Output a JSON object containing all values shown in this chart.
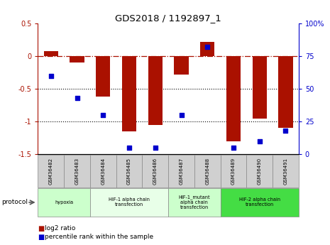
{
  "title": "GDS2018 / 1192897_1",
  "samples": [
    "GSM36482",
    "GSM36483",
    "GSM36484",
    "GSM36485",
    "GSM36486",
    "GSM36487",
    "GSM36488",
    "GSM36489",
    "GSM36490",
    "GSM36491"
  ],
  "log2_ratio": [
    0.08,
    -0.1,
    -0.62,
    -1.15,
    -1.05,
    -0.28,
    0.22,
    -1.3,
    -0.95,
    -1.1
  ],
  "percentile_rank": [
    60,
    43,
    30,
    5,
    5,
    30,
    82,
    5,
    10,
    18
  ],
  "ylim_left": [
    -1.5,
    0.5
  ],
  "ylim_right": [
    0,
    100
  ],
  "bar_color": "#aa1100",
  "sq_color": "#0000cc",
  "groups": [
    {
      "label": "hypoxia",
      "start": 0,
      "end": 1,
      "color": "#ccffcc"
    },
    {
      "label": "HIF-1 alpha chain\ntransfection",
      "start": 2,
      "end": 4,
      "color": "#e8ffe8"
    },
    {
      "label": "HIF-1_mutant\nalpha chain\ntransfection",
      "start": 5,
      "end": 6,
      "color": "#ccffcc"
    },
    {
      "label": "HIF-2 alpha chain\ntransfection",
      "start": 7,
      "end": 9,
      "color": "#44dd44"
    }
  ],
  "legend_label_bar": "log2 ratio",
  "legend_label_sq": "percentile rank within the sample",
  "protocol_label": "protocol"
}
